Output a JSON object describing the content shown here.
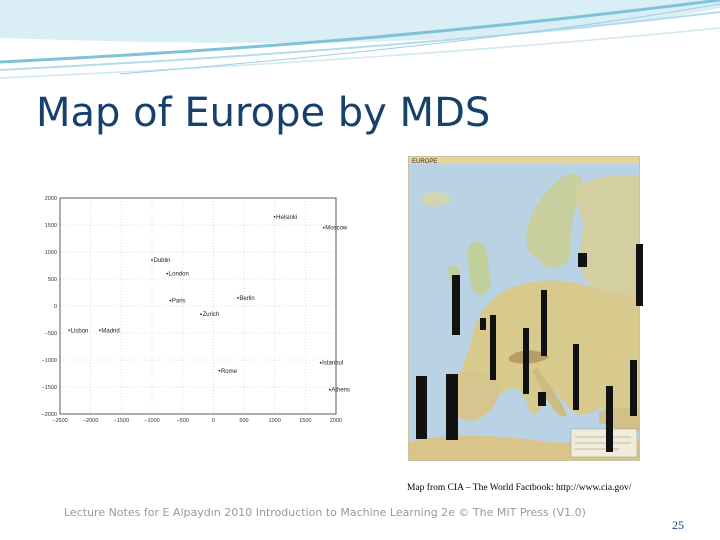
{
  "slide": {
    "title": "Map of Europe by MDS",
    "map_credit": "Map from CIA – The World Factbook: http://www.cia.gov/",
    "footer": "Lecture Notes for E Alpaydın 2010 Introduction to Machine Learning 2e © The MIT Press (V1.0)",
    "page_number": "25",
    "map_label": "EUROPE"
  },
  "colors": {
    "title": "#17406d",
    "swoosh": "#7fc3d9",
    "plot_points": "#1a1a8c"
  },
  "chart_data": {
    "type": "scatter",
    "grid": true,
    "xlim": [
      -2500,
      2000
    ],
    "ylim": [
      -2000,
      2000
    ],
    "x_ticks": [
      -2500,
      -2000,
      -1500,
      -1000,
      -500,
      0,
      500,
      1000,
      1500,
      2000
    ],
    "x_tick_labels": [
      "−2500",
      "−2000",
      "−1500",
      "−1000",
      "−500",
      "0",
      "500",
      "1000",
      "1500",
      "2000"
    ],
    "y_ticks": [
      2000,
      1500,
      1000,
      500,
      0,
      -500,
      -1000,
      -1500,
      -2000
    ],
    "y_tick_labels": [
      "2000",
      "1500",
      "1000",
      "500",
      "0",
      "−500",
      "−1000",
      "−1500",
      "−2000"
    ],
    "points": [
      {
        "label": "Helsinki",
        "x": 1000,
        "y": 1650
      },
      {
        "label": "Moscow",
        "x": 1800,
        "y": 1450
      },
      {
        "label": "Dublin",
        "x": -1000,
        "y": 850
      },
      {
        "label": "London",
        "x": -750,
        "y": 600
      },
      {
        "label": "Paris",
        "x": -700,
        "y": 100
      },
      {
        "label": "Berlin",
        "x": 400,
        "y": 150
      },
      {
        "label": "Zurich",
        "x": -200,
        "y": -150
      },
      {
        "label": "Lisbon",
        "x": -2350,
        "y": -450
      },
      {
        "label": "Madrid",
        "x": -1850,
        "y": -450
      },
      {
        "label": "Istanbul",
        "x": 1750,
        "y": -1050
      },
      {
        "label": "Rome",
        "x": 100,
        "y": -1200
      },
      {
        "label": "Athens",
        "x": 1900,
        "y": -1550
      }
    ]
  }
}
